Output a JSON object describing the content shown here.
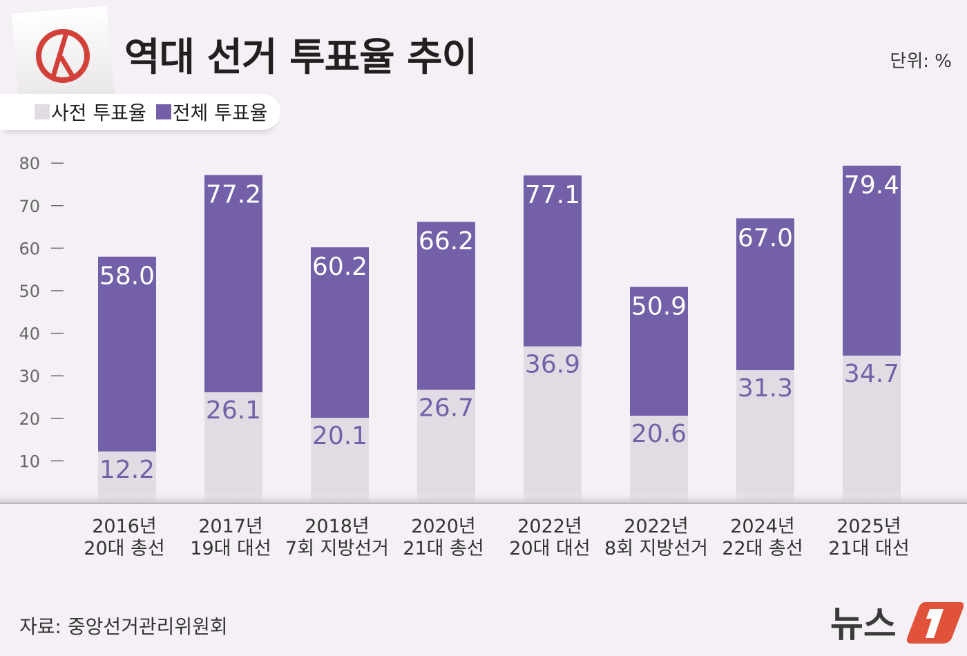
{
  "header": {
    "title": "역대 선거 투표율 추이",
    "unit": "단위: %"
  },
  "legend": [
    {
      "label": "사전 투표율",
      "color": "#e3dbe4"
    },
    {
      "label": "전체 투표율",
      "color": "#7360a8"
    }
  ],
  "source": "자료: 중앙선거관리위원회",
  "logo": {
    "text": "뉴스1",
    "icon": "news1-logo"
  },
  "stamp_icon": "vote-stamp-icon",
  "chart_data": {
    "type": "bar",
    "categories": [
      [
        "2016년",
        "20대 총선"
      ],
      [
        "2017년",
        "19대 대선"
      ],
      [
        "2018년",
        "7회 지방선거"
      ],
      [
        "2020년",
        "21대 총선"
      ],
      [
        "2022년",
        "20대 대선"
      ],
      [
        "2022년",
        "8회 지방선거"
      ],
      [
        "2024년",
        "22대 총선"
      ],
      [
        "2025년",
        "21대 대선"
      ]
    ],
    "series": [
      {
        "name": "사전 투표율",
        "values": [
          12.2,
          26.1,
          20.1,
          26.7,
          36.9,
          20.6,
          31.3,
          34.7
        ],
        "labels": [
          "12.2",
          "26.1",
          "20.1",
          "26.7",
          "36.9",
          "20.6",
          "31.3",
          "34.7"
        ],
        "color": "#e3dbe4",
        "label_color": "#7360a8"
      },
      {
        "name": "전체 투표율",
        "values": [
          58.0,
          77.2,
          60.2,
          66.2,
          77.1,
          50.9,
          67.0,
          79.4
        ],
        "labels": [
          "58.0",
          "77.2",
          "60.2",
          "66.2",
          "77.1",
          "50.9",
          "67.0",
          "79.4"
        ],
        "color": "#7360a8",
        "label_color": "#ffffff"
      }
    ],
    "yticks": [
      "10",
      "20",
      "30",
      "40",
      "50",
      "60",
      "70",
      "80"
    ],
    "ylim": [
      0,
      80
    ],
    "grid": false,
    "legend_position": "top-left"
  }
}
